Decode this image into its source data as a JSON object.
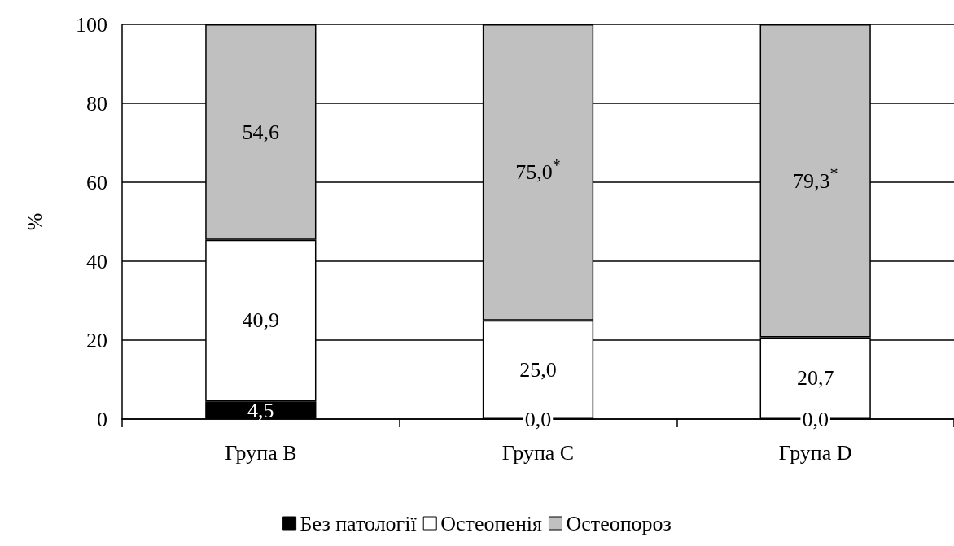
{
  "chart_data": {
    "type": "bar",
    "stacked": true,
    "ylabel": "%",
    "categories": [
      "Група B",
      "Група C",
      "Група D"
    ],
    "series": [
      {
        "name": "Без патології",
        "color": "#000000",
        "values": [
          4.5,
          0,
          0
        ],
        "value_labels": [
          "4,5",
          "0,0",
          "0,0"
        ]
      },
      {
        "name": "Остеопенія",
        "color": "#ffffff",
        "values": [
          40.9,
          25.0,
          20.7
        ],
        "value_labels": [
          "40,9",
          "25,0",
          "20,7"
        ]
      },
      {
        "name": "Остеопороз",
        "color": "#c0c0c0",
        "values": [
          54.6,
          75.0,
          79.3
        ],
        "value_labels": [
          "54,6",
          "75,0$^{*}$",
          "79,3$^{*}$"
        ]
      }
    ],
    "ylim": [
      0,
      100
    ],
    "yticks": [
      0,
      20,
      40,
      60,
      80,
      100
    ],
    "grid": "y",
    "legend": "bottom"
  }
}
